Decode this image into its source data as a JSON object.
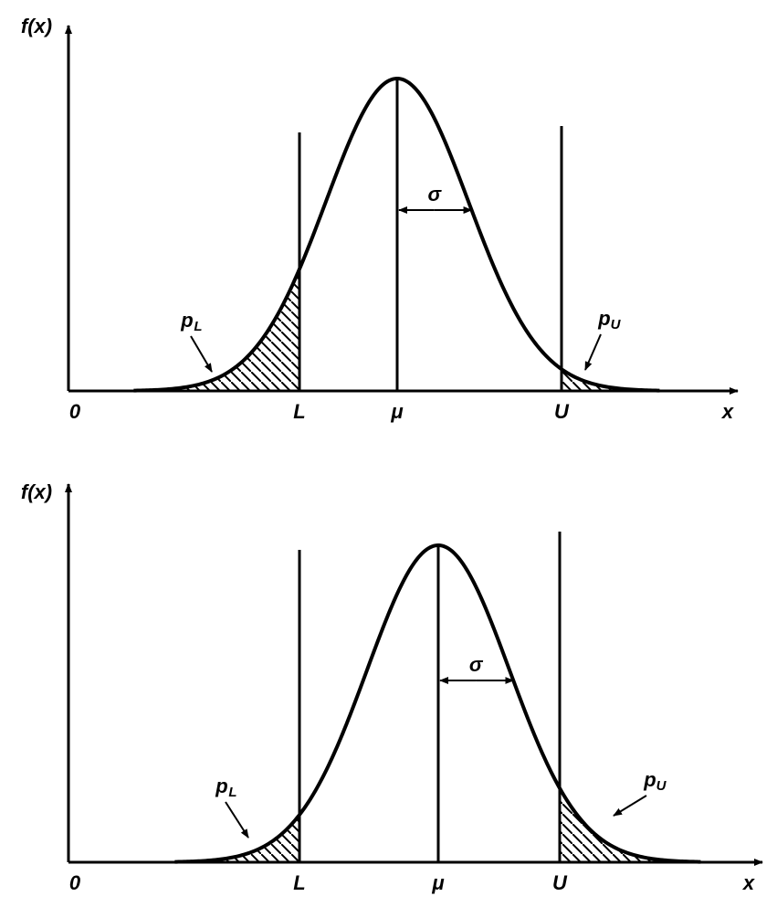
{
  "panels": [
    {
      "y_label": "f(x)",
      "origin": "0",
      "x_label": "x",
      "lower": "L",
      "mean": "μ",
      "upper": "U",
      "sigma": "σ",
      "p_lower": {
        "symbol": "p",
        "subscript": "L"
      },
      "p_upper": {
        "symbol": "p",
        "subscript": "U"
      }
    },
    {
      "y_label": "f(x)",
      "origin": "0",
      "x_label": "x",
      "lower": "L",
      "mean": "μ",
      "upper": "U",
      "sigma": "σ",
      "p_lower": {
        "symbol": "p",
        "subscript": "L"
      },
      "p_upper": {
        "symbol": "p",
        "subscript": "U"
      }
    }
  ]
}
